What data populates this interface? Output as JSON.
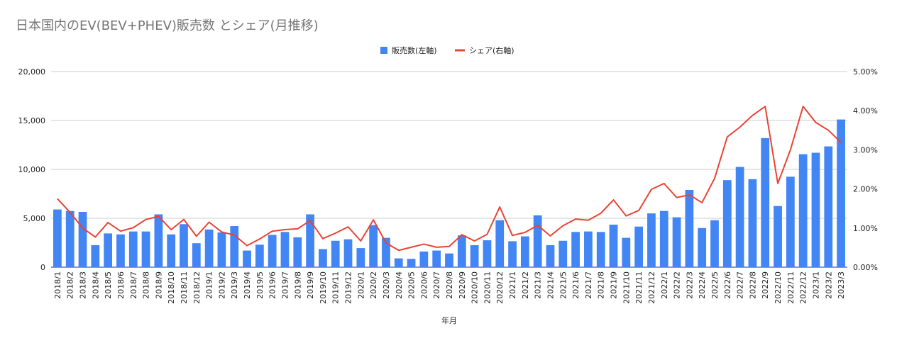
{
  "chart_data": {
    "type": "bar+line",
    "title": "日本国内のEV(BEV+PHEV)販売数 とシェア(月推移)",
    "xlabel": "年月",
    "ylabel_left": "",
    "ylabel_right": "",
    "ylim_left": [
      0,
      20000
    ],
    "ylim_right": [
      0,
      5
    ],
    "yticks_left": [
      "0",
      "5,000",
      "10,000",
      "15,000",
      "20,000"
    ],
    "yticks_right": [
      "0.00%",
      "1.00%",
      "2.00%",
      "3.00%",
      "4.00%",
      "5.00%"
    ],
    "grid": true,
    "legend_position": "top-center",
    "colors": {
      "bar": "#4285f4",
      "line": "#ea4335",
      "grid": "#cccccc",
      "title": "#757575"
    },
    "categories": [
      "2018/1",
      "2018/2",
      "2018/3",
      "2018/4",
      "2018/5",
      "2018/6",
      "2018/7",
      "2018/8",
      "2018/9",
      "2018/10",
      "2018/11",
      "2018/12",
      "2019/1",
      "2019/2",
      "2019/3",
      "2019/4",
      "2019/5",
      "2019/6",
      "2019/7",
      "2019/8",
      "2019/9",
      "2019/10",
      "2019/11",
      "2019/12",
      "2020/1",
      "2020/2",
      "2020/3",
      "2020/4",
      "2020/5",
      "2020/6",
      "2020/7",
      "2020/8",
      "2020/9",
      "2020/10",
      "2020/11",
      "2020/12",
      "2021/1",
      "2021/2",
      "2021/3",
      "2021/4",
      "2021/5",
      "2021/6",
      "2021/7",
      "2021/8",
      "2021/9",
      "2021/10",
      "2021/11",
      "2021/12",
      "2022/1",
      "2022/2",
      "2022/3",
      "2022/4",
      "2022/5",
      "2022/6",
      "2022/7",
      "2022/8",
      "2022/9",
      "2022/10",
      "2022/11",
      "2022/12",
      "2023/1",
      "2023/2",
      "2023/3"
    ],
    "series": [
      {
        "name": "販売数(左軸)",
        "axis": "left",
        "kind": "bar",
        "values": [
          5900,
          5750,
          5650,
          2250,
          3450,
          3350,
          3650,
          3650,
          5400,
          3350,
          4400,
          2450,
          3850,
          3550,
          4200,
          1700,
          2300,
          3300,
          3600,
          3050,
          5400,
          1850,
          2700,
          2850,
          1950,
          4300,
          3000,
          900,
          850,
          1600,
          1700,
          1400,
          3250,
          2250,
          2750,
          4800,
          2650,
          3150,
          5300,
          2250,
          2700,
          3600,
          3650,
          3600,
          4350,
          3000,
          4150,
          5500,
          5750,
          5100,
          7900,
          4000,
          4800,
          8900,
          10250,
          9000,
          13200,
          6250,
          9250,
          11550,
          11700,
          12350,
          15100
        ]
      },
      {
        "name": "シェア(右軸)",
        "axis": "right",
        "kind": "line",
        "values": [
          1.75,
          1.4,
          1.0,
          0.77,
          1.14,
          0.92,
          1.01,
          1.22,
          1.3,
          0.96,
          1.22,
          0.79,
          1.15,
          0.9,
          0.82,
          0.55,
          0.72,
          0.92,
          0.96,
          0.98,
          1.19,
          0.73,
          0.87,
          1.03,
          0.67,
          1.21,
          0.62,
          0.43,
          0.51,
          0.59,
          0.51,
          0.53,
          0.83,
          0.67,
          0.84,
          1.54,
          0.81,
          0.89,
          1.07,
          0.8,
          1.06,
          1.23,
          1.2,
          1.38,
          1.72,
          1.31,
          1.45,
          1.99,
          2.14,
          1.78,
          1.85,
          1.65,
          2.27,
          3.33,
          3.58,
          3.88,
          4.11,
          2.14,
          3.0,
          4.11,
          3.7,
          3.5,
          3.19
        ]
      }
    ]
  }
}
